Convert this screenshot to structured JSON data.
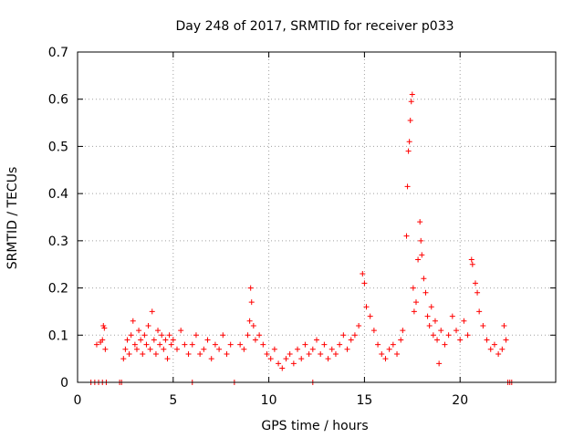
{
  "chart_data": {
    "type": "scatter",
    "title": "Day 248 of 2017, SRMTID for receiver p033",
    "xlabel": "GPS time / hours",
    "ylabel": "SRMTID / TECUs",
    "xlim": [
      0,
      25
    ],
    "ylim": [
      0,
      0.7
    ],
    "grid": true,
    "x_ticks": [
      0,
      5,
      10,
      15,
      20
    ],
    "x_tick_labels": [
      "0",
      "5",
      "10",
      "15",
      "20"
    ],
    "y_ticks": [
      0,
      0.1,
      0.2,
      0.3,
      0.4,
      0.5,
      0.6,
      0.7
    ],
    "y_tick_labels": [
      "0",
      "0.1",
      "0.2",
      "0.3",
      "0.4",
      "0.5",
      "0.6",
      "0.7"
    ],
    "series": [
      {
        "name": "SRMTID",
        "color": "#ff0000",
        "marker": "plus",
        "points": [
          [
            1.0,
            0.08
          ],
          [
            1.2,
            0.085
          ],
          [
            1.3,
            0.09
          ],
          [
            1.35,
            0.12
          ],
          [
            1.4,
            0.115
          ],
          [
            1.45,
            0.07
          ],
          [
            2.4,
            0.05
          ],
          [
            2.5,
            0.07
          ],
          [
            2.6,
            0.09
          ],
          [
            2.7,
            0.06
          ],
          [
            2.8,
            0.1
          ],
          [
            2.9,
            0.13
          ],
          [
            3.0,
            0.08
          ],
          [
            3.1,
            0.07
          ],
          [
            3.2,
            0.11
          ],
          [
            3.3,
            0.09
          ],
          [
            3.4,
            0.06
          ],
          [
            3.5,
            0.1
          ],
          [
            3.6,
            0.08
          ],
          [
            3.7,
            0.12
          ],
          [
            3.8,
            0.07
          ],
          [
            3.9,
            0.15
          ],
          [
            4.0,
            0.09
          ],
          [
            4.1,
            0.06
          ],
          [
            4.2,
            0.11
          ],
          [
            4.3,
            0.08
          ],
          [
            4.4,
            0.1
          ],
          [
            4.5,
            0.07
          ],
          [
            4.6,
            0.09
          ],
          [
            4.7,
            0.05
          ],
          [
            4.8,
            0.1
          ],
          [
            4.9,
            0.08
          ],
          [
            5.0,
            0.09
          ],
          [
            5.2,
            0.07
          ],
          [
            5.4,
            0.11
          ],
          [
            5.6,
            0.08
          ],
          [
            5.8,
            0.06
          ],
          [
            6.0,
            0.08
          ],
          [
            6.2,
            0.1
          ],
          [
            6.4,
            0.06
          ],
          [
            6.6,
            0.07
          ],
          [
            6.8,
            0.09
          ],
          [
            7.0,
            0.05
          ],
          [
            7.2,
            0.08
          ],
          [
            7.4,
            0.07
          ],
          [
            7.6,
            0.1
          ],
          [
            7.8,
            0.06
          ],
          [
            8.0,
            0.08
          ],
          [
            8.5,
            0.08
          ],
          [
            8.7,
            0.07
          ],
          [
            8.9,
            0.1
          ],
          [
            9.0,
            0.13
          ],
          [
            9.05,
            0.2
          ],
          [
            9.1,
            0.17
          ],
          [
            9.2,
            0.12
          ],
          [
            9.3,
            0.09
          ],
          [
            9.5,
            0.1
          ],
          [
            9.7,
            0.08
          ],
          [
            9.9,
            0.06
          ],
          [
            10.1,
            0.05
          ],
          [
            10.3,
            0.07
          ],
          [
            10.5,
            0.04
          ],
          [
            10.7,
            0.03
          ],
          [
            10.9,
            0.05
          ],
          [
            11.1,
            0.06
          ],
          [
            11.3,
            0.04
          ],
          [
            11.5,
            0.07
          ],
          [
            11.7,
            0.05
          ],
          [
            11.9,
            0.08
          ],
          [
            12.1,
            0.06
          ],
          [
            12.3,
            0.07
          ],
          [
            12.5,
            0.09
          ],
          [
            12.7,
            0.06
          ],
          [
            12.9,
            0.08
          ],
          [
            13.1,
            0.05
          ],
          [
            13.3,
            0.07
          ],
          [
            13.5,
            0.06
          ],
          [
            13.7,
            0.08
          ],
          [
            13.9,
            0.1
          ],
          [
            14.1,
            0.07
          ],
          [
            14.3,
            0.09
          ],
          [
            14.5,
            0.1
          ],
          [
            14.7,
            0.12
          ],
          [
            14.9,
            0.23
          ],
          [
            15.0,
            0.21
          ],
          [
            15.1,
            0.16
          ],
          [
            15.3,
            0.14
          ],
          [
            15.5,
            0.11
          ],
          [
            15.7,
            0.08
          ],
          [
            15.9,
            0.06
          ],
          [
            16.1,
            0.05
          ],
          [
            16.3,
            0.07
          ],
          [
            16.5,
            0.08
          ],
          [
            16.7,
            0.06
          ],
          [
            16.9,
            0.09
          ],
          [
            17.0,
            0.11
          ],
          [
            17.2,
            0.31
          ],
          [
            17.25,
            0.415
          ],
          [
            17.3,
            0.49
          ],
          [
            17.35,
            0.51
          ],
          [
            17.4,
            0.555
          ],
          [
            17.45,
            0.595
          ],
          [
            17.5,
            0.61
          ],
          [
            17.55,
            0.2
          ],
          [
            17.6,
            0.15
          ],
          [
            17.7,
            0.17
          ],
          [
            17.8,
            0.26
          ],
          [
            17.9,
            0.34
          ],
          [
            17.95,
            0.3
          ],
          [
            18.0,
            0.27
          ],
          [
            18.1,
            0.22
          ],
          [
            18.2,
            0.19
          ],
          [
            18.3,
            0.14
          ],
          [
            18.4,
            0.12
          ],
          [
            18.5,
            0.16
          ],
          [
            18.6,
            0.1
          ],
          [
            18.7,
            0.13
          ],
          [
            18.8,
            0.09
          ],
          [
            18.9,
            0.04
          ],
          [
            19.0,
            0.11
          ],
          [
            19.2,
            0.08
          ],
          [
            19.4,
            0.1
          ],
          [
            19.6,
            0.14
          ],
          [
            19.8,
            0.11
          ],
          [
            20.0,
            0.09
          ],
          [
            20.2,
            0.13
          ],
          [
            20.4,
            0.1
          ],
          [
            20.6,
            0.26
          ],
          [
            20.65,
            0.25
          ],
          [
            20.8,
            0.21
          ],
          [
            20.9,
            0.19
          ],
          [
            21.0,
            0.15
          ],
          [
            21.2,
            0.12
          ],
          [
            21.4,
            0.09
          ],
          [
            21.6,
            0.07
          ],
          [
            21.8,
            0.08
          ],
          [
            22.0,
            0.06
          ],
          [
            22.2,
            0.07
          ],
          [
            22.3,
            0.12
          ],
          [
            22.4,
            0.09
          ],
          [
            0.7,
            0.0
          ],
          [
            0.9,
            0.0
          ],
          [
            1.1,
            0.0
          ],
          [
            1.3,
            0.0
          ],
          [
            1.5,
            0.0
          ],
          [
            2.2,
            0.0
          ],
          [
            2.3,
            0.0
          ],
          [
            6.0,
            0.0
          ],
          [
            8.2,
            0.0
          ],
          [
            12.3,
            0.0
          ],
          [
            22.5,
            0.0
          ],
          [
            22.6,
            0.0
          ],
          [
            22.7,
            0.0
          ]
        ]
      }
    ]
  }
}
